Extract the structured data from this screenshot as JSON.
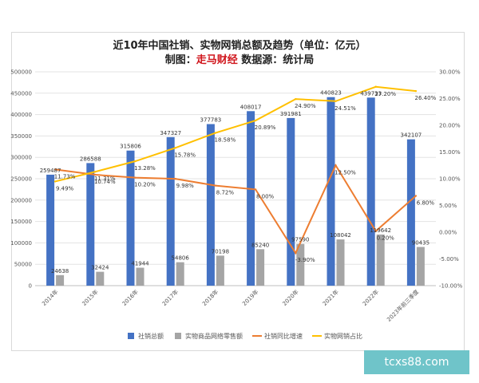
{
  "title_line1": "近10年中国社销、实物网销总额及趋势（单位：亿元）",
  "title_line2_prefix": "制图：",
  "title_line2_brand": "走马财经",
  "title_line2_suffix": " 数据源：统计局",
  "watermark": "tcxs88.com",
  "chart_data": {
    "type": "bar",
    "categories": [
      "2014年",
      "2015年",
      "2016年",
      "2017年",
      "2018年",
      "2019年",
      "2020年",
      "2021年",
      "2022年",
      "2023年前三季度"
    ],
    "series": [
      {
        "name": "社销总额",
        "kind": "bar",
        "axis": "left",
        "color": "#4472c4",
        "values": [
          259487,
          286588,
          315806,
          347327,
          377783,
          408017,
          391981,
          440823,
          439733,
          342107
        ],
        "labels": [
          "259487",
          "286588",
          "315806",
          "347327",
          "377783",
          "408017",
          "391981",
          "440823",
          "439733",
          "342107"
        ]
      },
      {
        "name": "实物商品网络零售额",
        "kind": "bar",
        "axis": "left",
        "color": "#a5a5a5",
        "values": [
          24638,
          32424,
          41944,
          54806,
          70198,
          85240,
          97590,
          108042,
          119642,
          90435
        ],
        "labels": [
          "24638",
          "32424",
          "41944",
          "54806",
          "70198",
          "85240",
          "97590",
          "108042",
          "119642",
          "90435"
        ]
      },
      {
        "name": "社销同比增速",
        "kind": "line",
        "axis": "right",
        "color": "#ed7d31",
        "values": [
          11.73,
          10.74,
          10.2,
          9.98,
          8.72,
          8.0,
          -3.9,
          12.5,
          0.2,
          6.8
        ],
        "labels": [
          "11.73%",
          "10.74%",
          "10.20%",
          "9.98%",
          "8.72%",
          "8.00%",
          "-3.90%",
          "12.50%",
          "0.20%",
          "6.80%"
        ]
      },
      {
        "name": "实物网销占比",
        "kind": "line",
        "axis": "right",
        "color": "#ffc000",
        "values": [
          9.49,
          11.31,
          13.28,
          15.78,
          18.58,
          20.89,
          24.9,
          24.51,
          27.2,
          26.4
        ],
        "labels": [
          "9.49%",
          "11.31%",
          "13.28%",
          "15.78%",
          "18.58%",
          "20.89%",
          "24.90%",
          "24.51%",
          "27.20%",
          "26.40%"
        ]
      }
    ],
    "left_axis": {
      "min": 0,
      "max": 500000,
      "step": 50000,
      "ticks": [
        "0",
        "50000",
        "100000",
        "150000",
        "200000",
        "250000",
        "300000",
        "350000",
        "400000",
        "450000",
        "500000"
      ]
    },
    "right_axis": {
      "min": -10,
      "max": 30,
      "step": 5,
      "ticks": [
        "-10.00%",
        "-5.00%",
        "0.00%",
        "5.00%",
        "10.00%",
        "15.00%",
        "20.00%",
        "25.00%",
        "30.00%"
      ]
    },
    "grid": true,
    "legend_position": "bottom"
  }
}
